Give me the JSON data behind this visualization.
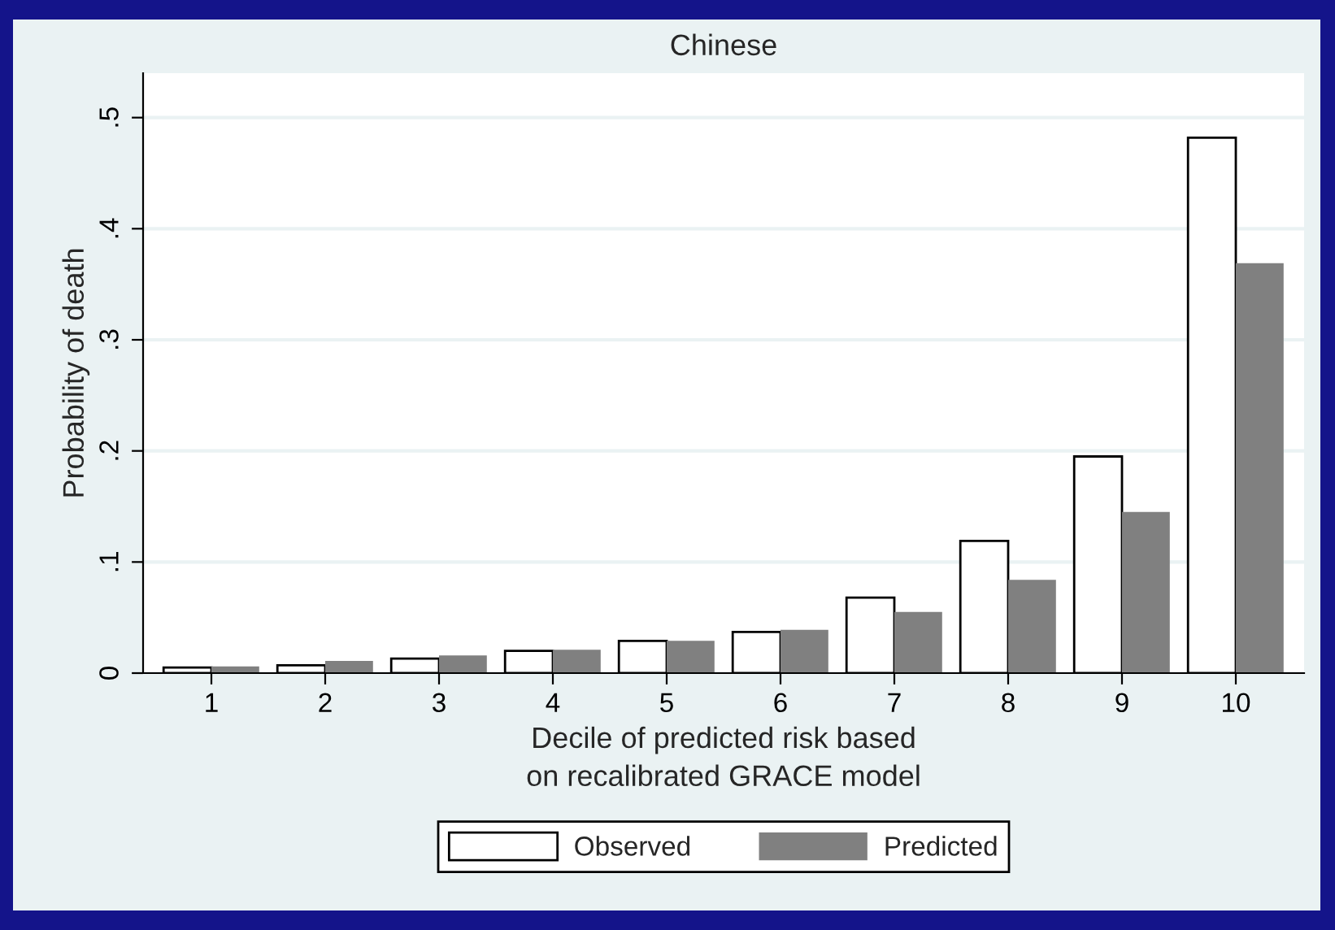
{
  "chart_data": {
    "type": "bar",
    "title": "Chinese",
    "categories": [
      "1",
      "2",
      "3",
      "4",
      "5",
      "6",
      "7",
      "8",
      "9",
      "10"
    ],
    "series": [
      {
        "name": "Observed",
        "color": "#ffffff",
        "values": [
          0.005,
          0.007,
          0.013,
          0.02,
          0.029,
          0.037,
          0.068,
          0.119,
          0.195,
          0.482
        ]
      },
      {
        "name": "Predicted",
        "color": "#808080",
        "values": [
          0.006,
          0.011,
          0.016,
          0.021,
          0.029,
          0.039,
          0.055,
          0.084,
          0.145,
          0.369
        ]
      }
    ],
    "xlabel": "Decile of predicted risk based\non recalibrated GRACE model",
    "ylabel": "Probability of death",
    "ylim": [
      0,
      0.54
    ],
    "yticks": [
      {
        "value": 0,
        "label": "0"
      },
      {
        "value": 0.1,
        "label": ".1"
      },
      {
        "value": 0.2,
        "label": ".2"
      },
      {
        "value": 0.3,
        "label": ".3"
      },
      {
        "value": 0.4,
        "label": ".4"
      },
      {
        "value": 0.5,
        "label": ".5"
      }
    ],
    "grid": "y",
    "legend": "bottom"
  }
}
